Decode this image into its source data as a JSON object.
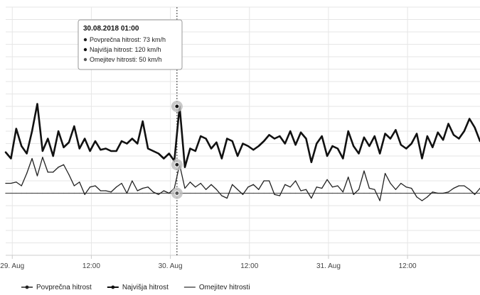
{
  "chart_data": {
    "type": "line",
    "title": "",
    "xlabel": "",
    "ylabel": "",
    "x_tick_labels": [
      "29. Aug",
      "12:00",
      "30. Aug",
      "12:00",
      "31. Aug",
      "12:00"
    ],
    "x_tick_hours": [
      0,
      12,
      24,
      36,
      48,
      60
    ],
    "x_range_hours": [
      -1,
      71
    ],
    "ylim": [
      0,
      200
    ],
    "y_grid_step": 10,
    "grid": true,
    "crosshair_hour": 25,
    "colors": {
      "avg": "#222222",
      "max": "#111111",
      "limit": "#555555",
      "grid": "#e6e6e6",
      "tooltip_border": "#999999",
      "halo": "#bbbbbb"
    },
    "series": [
      {
        "key": "max",
        "name": "Najvišja hitrost",
        "stroke_width": 2.6,
        "values": [
          83,
          78,
          102,
          88,
          82,
          100,
          122,
          84,
          94,
          80,
          100,
          87,
          91,
          104,
          86,
          94,
          84,
          92,
          85,
          86,
          84,
          84,
          92,
          90,
          94,
          90,
          108,
          86,
          84,
          82,
          78,
          82,
          76,
          120,
          71,
          86,
          84,
          96,
          94,
          86,
          91,
          78,
          94,
          92,
          80,
          90,
          88,
          85,
          88,
          92,
          97,
          94,
          96,
          90,
          100,
          89,
          99,
          94,
          75,
          90,
          96,
          80,
          88,
          86,
          78,
          100,
          88,
          82,
          95,
          88,
          96,
          82,
          98,
          94,
          101,
          89,
          86,
          90,
          98,
          78,
          96,
          87,
          99,
          93,
          106,
          97,
          94,
          100,
          110,
          103,
          92
        ]
      },
      {
        "key": "avg",
        "name": "Povprečna hitrost",
        "stroke_width": 1.3,
        "values": [
          58,
          58,
          59,
          56,
          66,
          78,
          64,
          79,
          67,
          67,
          71,
          73,
          65,
          56,
          59,
          49,
          55,
          56,
          52,
          52,
          51,
          55,
          58,
          50,
          60,
          52,
          54,
          55,
          51,
          49,
          52,
          50,
          54,
          73,
          54,
          59,
          55,
          58,
          53,
          57,
          53,
          48,
          46,
          57,
          53,
          49,
          55,
          57,
          53,
          60,
          60,
          49,
          48,
          57,
          55,
          60,
          52,
          53,
          46,
          55,
          54,
          61,
          55,
          56,
          51,
          63,
          49,
          53,
          68,
          54,
          53,
          44,
          66,
          58,
          53,
          58,
          55,
          54,
          47,
          44,
          47,
          51,
          50,
          50,
          51,
          54,
          56,
          56,
          53,
          49,
          54
        ]
      },
      {
        "key": "limit",
        "name": "Omejitev hitrosti",
        "stroke_width": 1.3,
        "values": [
          50,
          50,
          50,
          50,
          50,
          50,
          50,
          50,
          50,
          50,
          50,
          50,
          50,
          50,
          50,
          50,
          50,
          50,
          50,
          50,
          50,
          50,
          50,
          50,
          50,
          50,
          50,
          50,
          50,
          50,
          50,
          50,
          50,
          50,
          50,
          50,
          50,
          50,
          50,
          50,
          50,
          50,
          50,
          50,
          50,
          50,
          50,
          50,
          50,
          50,
          50,
          50,
          50,
          50,
          50,
          50,
          50,
          50,
          50,
          50,
          50,
          50,
          50,
          50,
          50,
          50,
          50,
          50,
          50,
          50,
          50,
          50,
          50,
          50,
          50,
          50,
          50,
          50,
          50,
          50,
          50,
          50,
          50,
          50,
          50,
          50,
          50,
          50,
          50,
          50,
          50
        ]
      }
    ],
    "tooltip": {
      "title": "30.08.2018 01:00",
      "rows": [
        {
          "key": "avg",
          "label": "Povprečna hitrost: 73 km/h"
        },
        {
          "key": "max",
          "label": "Najvišja hitrost: 120 km/h"
        },
        {
          "key": "limit",
          "label": "Omejitev hitrosti: 50 km/h"
        }
      ]
    },
    "legend": {
      "placement": "bottom-left",
      "items": [
        {
          "key": "avg",
          "label": "Povprečna hitrost"
        },
        {
          "key": "max",
          "label": "Najvišja hitrost"
        },
        {
          "key": "limit",
          "label": "Omejitev hitrosti"
        }
      ]
    }
  }
}
